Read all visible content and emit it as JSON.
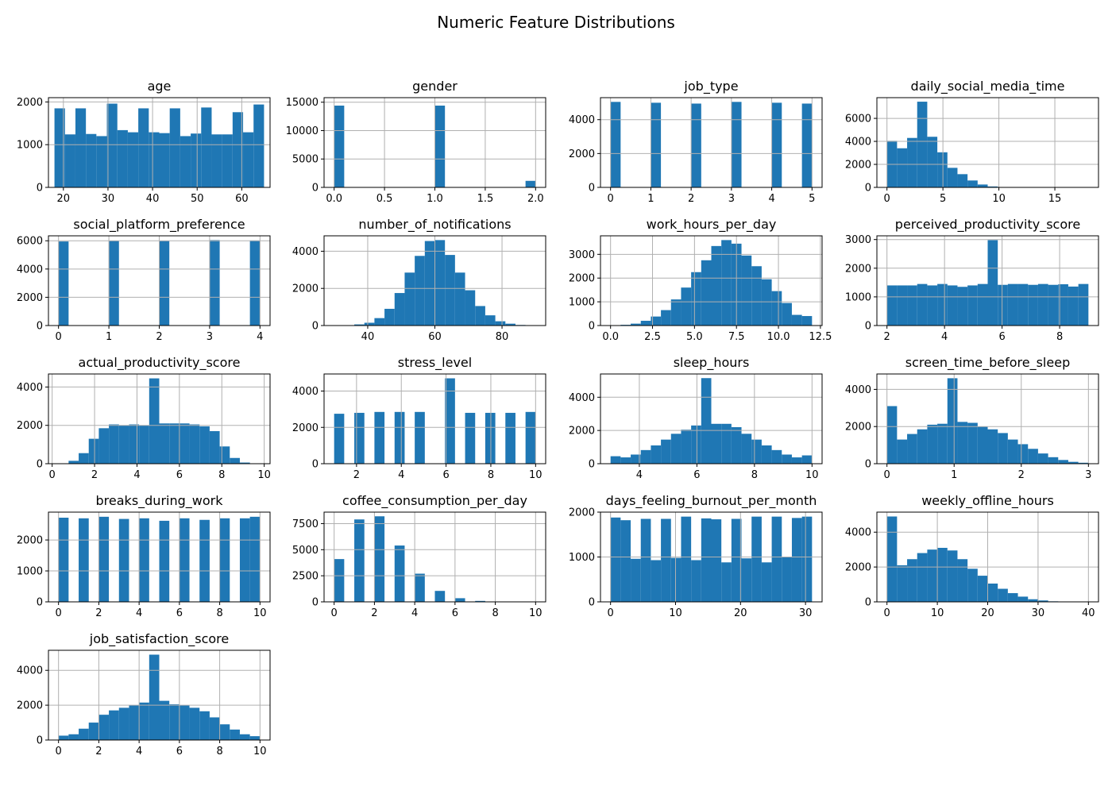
{
  "figure": {
    "title": "Numeric Feature Distributions"
  },
  "chart_data": [
    {
      "type": "bar",
      "title": "age",
      "bin_edges": [
        18,
        20.35,
        22.7,
        25.05,
        27.4,
        29.75,
        32.1,
        34.45,
        36.8,
        39.15,
        41.5,
        43.85,
        46.2,
        48.55,
        50.9,
        53.25,
        55.6,
        57.95,
        60.3,
        62.65,
        65
      ],
      "values": [
        1850,
        1240,
        1850,
        1250,
        1200,
        1960,
        1340,
        1290,
        1850,
        1290,
        1270,
        1850,
        1200,
        1260,
        1870,
        1240,
        1240,
        1760,
        1290,
        1940
      ],
      "xlim": [
        16.65,
        66.35
      ],
      "ylim": [
        0,
        2100
      ],
      "xticks": [
        20,
        30,
        40,
        50,
        60
      ],
      "xtick_labels": [
        "20",
        "30",
        "40",
        "50",
        "60"
      ],
      "yticks": [
        0,
        1000,
        2000
      ],
      "ytick_labels": [
        "0",
        "1000",
        "2000"
      ],
      "grid": true,
      "color": "#1f77b4"
    },
    {
      "type": "bar",
      "title": "gender",
      "bin_edges": [
        0,
        0.1,
        0.2,
        0.3,
        0.4,
        0.5,
        0.6,
        0.7,
        0.8,
        0.9,
        1.0,
        1.1,
        1.2,
        1.3,
        1.4,
        1.5,
        1.6,
        1.7,
        1.8,
        1.9,
        2.0
      ],
      "values": [
        14400,
        0,
        0,
        0,
        0,
        0,
        0,
        0,
        0,
        0,
        14400,
        0,
        0,
        0,
        0,
        0,
        0,
        0,
        0,
        1150
      ],
      "xlim": [
        -0.1,
        2.1
      ],
      "ylim": [
        0,
        15800
      ],
      "xticks": [
        0,
        0.5,
        1,
        1.5,
        2
      ],
      "xtick_labels": [
        "0.0",
        "0.5",
        "1.0",
        "1.5",
        "2.0"
      ],
      "yticks": [
        0,
        5000,
        10000,
        15000
      ],
      "ytick_labels": [
        "0",
        "5000",
        "10000",
        "15000"
      ],
      "grid": true,
      "color": "#1f77b4"
    },
    {
      "type": "bar",
      "title": "job_type",
      "bin_edges": [
        0,
        0.25,
        0.5,
        0.75,
        1.0,
        1.25,
        1.5,
        1.75,
        2.0,
        2.25,
        2.5,
        2.75,
        3.0,
        3.25,
        3.5,
        3.75,
        4.0,
        4.25,
        4.5,
        4.75,
        5.0
      ],
      "values": [
        5050,
        0,
        0,
        0,
        5000,
        0,
        0,
        0,
        4950,
        0,
        0,
        0,
        5050,
        0,
        0,
        0,
        5000,
        0,
        0,
        4950
      ],
      "xlim": [
        -0.25,
        5.25
      ],
      "ylim": [
        0,
        5300
      ],
      "xticks": [
        0,
        1,
        2,
        3,
        4,
        5
      ],
      "xtick_labels": [
        "0",
        "1",
        "2",
        "3",
        "4",
        "5"
      ],
      "yticks": [
        0,
        2000,
        4000
      ],
      "ytick_labels": [
        "0",
        "2000",
        "4000"
      ],
      "grid": true,
      "color": "#1f77b4"
    },
    {
      "type": "bar",
      "title": "daily_social_media_time",
      "bin_edges": [
        0,
        0.9,
        1.8,
        2.7,
        3.6,
        4.5,
        5.4,
        6.3,
        7.2,
        8.1,
        9.0,
        9.9,
        10.8,
        11.7,
        12.6,
        13.5,
        14.4,
        15.3,
        16.2,
        17.1,
        18.0
      ],
      "values": [
        4050,
        3400,
        4300,
        7450,
        4400,
        3050,
        1700,
        1150,
        600,
        250,
        80,
        30,
        10,
        5,
        0,
        0,
        0,
        0,
        0,
        0
      ],
      "xlim": [
        -0.9,
        18.9
      ],
      "ylim": [
        0,
        7800
      ],
      "xticks": [
        0,
        5,
        10,
        15
      ],
      "xtick_labels": [
        "0",
        "5",
        "10",
        "15"
      ],
      "yticks": [
        0,
        2000,
        4000,
        6000
      ],
      "ytick_labels": [
        "0",
        "2000",
        "4000",
        "6000"
      ],
      "grid": true,
      "color": "#1f77b4"
    },
    {
      "type": "bar",
      "title": "social_platform_preference",
      "bin_edges": [
        0,
        0.2,
        0.4,
        0.6,
        0.8,
        1.0,
        1.2,
        1.4,
        1.6,
        1.8,
        2.0,
        2.2,
        2.4,
        2.6,
        2.8,
        3.0,
        3.2,
        3.4,
        3.6,
        3.8,
        4.0
      ],
      "values": [
        5950,
        0,
        0,
        0,
        0,
        6000,
        0,
        0,
        0,
        0,
        5980,
        0,
        0,
        0,
        0,
        6050,
        0,
        0,
        0,
        6020
      ],
      "xlim": [
        -0.2,
        4.2
      ],
      "ylim": [
        0,
        6350
      ],
      "xticks": [
        0,
        1,
        2,
        3,
        4
      ],
      "xtick_labels": [
        "0",
        "1",
        "2",
        "3",
        "4"
      ],
      "yticks": [
        0,
        2000,
        4000,
        6000
      ],
      "ytick_labels": [
        "0",
        "2000",
        "4000",
        "6000"
      ],
      "grid": true,
      "color": "#1f77b4"
    },
    {
      "type": "bar",
      "title": "number_of_notifications",
      "bin_edges": [
        30,
        33,
        36,
        39,
        42,
        45,
        48,
        51,
        54,
        57,
        60,
        63,
        66,
        69,
        72,
        75,
        78,
        81,
        84,
        87,
        90
      ],
      "values": [
        5,
        20,
        60,
        150,
        400,
        900,
        1750,
        2850,
        3750,
        4550,
        4600,
        3800,
        2850,
        1900,
        1050,
        550,
        230,
        100,
        30,
        10
      ],
      "xlim": [
        27,
        93
      ],
      "ylim": [
        0,
        4830
      ],
      "xticks": [
        40,
        60,
        80
      ],
      "xtick_labels": [
        "40",
        "60",
        "80"
      ],
      "yticks": [
        0,
        2000,
        4000
      ],
      "ytick_labels": [
        "0",
        "2000",
        "4000"
      ],
      "grid": true,
      "color": "#1f77b4"
    },
    {
      "type": "bar",
      "title": "work_hours_per_day",
      "bin_edges": [
        0,
        0.6,
        1.2,
        1.8,
        2.4,
        3.0,
        3.6,
        4.2,
        4.8,
        5.4,
        6.0,
        6.6,
        7.2,
        7.8,
        8.4,
        9.0,
        9.6,
        10.2,
        10.8,
        11.4,
        12.0
      ],
      "values": [
        10,
        30,
        80,
        200,
        380,
        650,
        1100,
        1600,
        2250,
        2750,
        3350,
        3600,
        3450,
        2950,
        2500,
        1950,
        1450,
        950,
        450,
        400
      ],
      "xlim": [
        -0.6,
        12.6
      ],
      "ylim": [
        0,
        3780
      ],
      "xticks": [
        0,
        2.5,
        5,
        7.5,
        10,
        12.5
      ],
      "xtick_labels": [
        "0.0",
        "2.5",
        "5.0",
        "7.5",
        "10.0",
        "12.5"
      ],
      "yticks": [
        0,
        1000,
        2000,
        3000
      ],
      "ytick_labels": [
        "0",
        "1000",
        "2000",
        "3000"
      ],
      "grid": true,
      "color": "#1f77b4"
    },
    {
      "type": "bar",
      "title": "perceived_productivity_score",
      "bin_edges": [
        2,
        2.35,
        2.7,
        3.05,
        3.4,
        3.75,
        4.1,
        4.45,
        4.8,
        5.15,
        5.5,
        5.85,
        6.2,
        6.55,
        6.9,
        7.25,
        7.6,
        7.95,
        8.3,
        8.65,
        9.0
      ],
      "values": [
        1400,
        1400,
        1400,
        1450,
        1400,
        1450,
        1400,
        1350,
        1400,
        1450,
        2980,
        1420,
        1450,
        1450,
        1420,
        1450,
        1420,
        1440,
        1360,
        1450
      ],
      "xlim": [
        1.65,
        9.35
      ],
      "ylim": [
        0,
        3130
      ],
      "xticks": [
        2,
        4,
        6,
        8
      ],
      "xtick_labels": [
        "2",
        "4",
        "6",
        "8"
      ],
      "yticks": [
        0,
        1000,
        2000,
        3000
      ],
      "ytick_labels": [
        "0",
        "1000",
        "2000",
        "3000"
      ],
      "grid": true,
      "color": "#1f77b4"
    },
    {
      "type": "bar",
      "title": "actual_productivity_score",
      "bin_edges": [
        0.3,
        0.775,
        1.25,
        1.725,
        2.2,
        2.675,
        3.15,
        3.625,
        4.1,
        4.575,
        5.05,
        5.525,
        6.0,
        6.475,
        6.95,
        7.425,
        7.9,
        8.375,
        8.85,
        9.325,
        9.8
      ],
      "values": [
        10,
        150,
        550,
        1300,
        1850,
        2050,
        2000,
        2050,
        2000,
        4450,
        2100,
        2100,
        2100,
        2050,
        1950,
        1700,
        900,
        300,
        60,
        10
      ],
      "xlim": [
        -0.175,
        10.275
      ],
      "ylim": [
        0,
        4680
      ],
      "xticks": [
        0,
        2,
        4,
        6,
        8,
        10
      ],
      "xtick_labels": [
        "0",
        "2",
        "4",
        "6",
        "8",
        "10"
      ],
      "yticks": [
        0,
        2000,
        4000
      ],
      "ytick_labels": [
        "0",
        "2000",
        "4000"
      ],
      "grid": true,
      "color": "#1f77b4"
    },
    {
      "type": "bar",
      "title": "stress_level",
      "bin_edges": [
        1,
        1.45,
        1.9,
        2.35,
        2.8,
        3.25,
        3.7,
        4.15,
        4.6,
        5.05,
        5.5,
        5.95,
        6.4,
        6.85,
        7.3,
        7.75,
        8.2,
        8.65,
        9.1,
        9.55,
        10.0
      ],
      "values": [
        2750,
        0,
        2800,
        0,
        2850,
        0,
        2850,
        0,
        2850,
        0,
        0,
        4700,
        0,
        2800,
        0,
        2800,
        0,
        2800,
        0,
        2850
      ],
      "xlim": [
        0.55,
        10.45
      ],
      "ylim": [
        0,
        4940
      ],
      "xticks": [
        2,
        4,
        6,
        8,
        10
      ],
      "xtick_labels": [
        "2",
        "4",
        "6",
        "8",
        "10"
      ],
      "yticks": [
        0,
        2000,
        4000
      ],
      "ytick_labels": [
        "0",
        "2000",
        "4000"
      ],
      "grid": true,
      "color": "#1f77b4"
    },
    {
      "type": "bar",
      "title": "sleep_hours",
      "bin_edges": [
        3,
        3.35,
        3.7,
        4.05,
        4.4,
        4.75,
        5.1,
        5.45,
        5.8,
        6.15,
        6.5,
        6.85,
        7.2,
        7.55,
        7.9,
        8.25,
        8.6,
        8.95,
        9.3,
        9.65,
        10.0
      ],
      "values": [
        450,
        380,
        550,
        820,
        1100,
        1450,
        1800,
        2050,
        2300,
        5150,
        2400,
        2400,
        2200,
        1800,
        1450,
        1100,
        820,
        550,
        380,
        500
      ],
      "xlim": [
        2.65,
        10.35
      ],
      "ylim": [
        0,
        5400
      ],
      "xticks": [
        4,
        6,
        8,
        10
      ],
      "xtick_labels": [
        "4",
        "6",
        "8",
        "10"
      ],
      "yticks": [
        0,
        2000,
        4000
      ],
      "ytick_labels": [
        "0",
        "2000",
        "4000"
      ],
      "grid": true,
      "color": "#1f77b4"
    },
    {
      "type": "bar",
      "title": "screen_time_before_sleep",
      "bin_edges": [
        0,
        0.15,
        0.3,
        0.45,
        0.6,
        0.75,
        0.9,
        1.05,
        1.2,
        1.35,
        1.5,
        1.65,
        1.8,
        1.95,
        2.1,
        2.25,
        2.4,
        2.55,
        2.7,
        2.85,
        3.0
      ],
      "values": [
        3100,
        1300,
        1600,
        1850,
        2100,
        2150,
        4600,
        2250,
        2200,
        2000,
        1850,
        1650,
        1300,
        1050,
        800,
        550,
        350,
        200,
        100,
        50
      ],
      "xlim": [
        -0.15,
        3.15
      ],
      "ylim": [
        0,
        4830
      ],
      "xticks": [
        0,
        1,
        2,
        3
      ],
      "xtick_labels": [
        "0",
        "1",
        "2",
        "3"
      ],
      "yticks": [
        0,
        2000,
        4000
      ],
      "ytick_labels": [
        "0",
        "2000",
        "4000"
      ],
      "grid": true,
      "color": "#1f77b4"
    },
    {
      "type": "bar",
      "title": "breaks_during_work",
      "bin_edges": [
        0,
        0.5,
        1.0,
        1.5,
        2.0,
        2.5,
        3.0,
        3.5,
        4.0,
        4.5,
        5.0,
        5.5,
        6.0,
        6.5,
        7.0,
        7.5,
        8.0,
        8.5,
        9.0,
        9.5,
        10.0
      ],
      "values": [
        2720,
        0,
        2700,
        0,
        2750,
        0,
        2680,
        0,
        2700,
        0,
        2620,
        0,
        2700,
        0,
        2650,
        0,
        2700,
        0,
        2700,
        2750
      ],
      "xlim": [
        -0.5,
        10.5
      ],
      "ylim": [
        0,
        2900
      ],
      "xticks": [
        0,
        2,
        4,
        6,
        8,
        10
      ],
      "xtick_labels": [
        "0",
        "2",
        "4",
        "6",
        "8",
        "10"
      ],
      "yticks": [
        0,
        1000,
        2000
      ],
      "ytick_labels": [
        "0",
        "1000",
        "2000"
      ],
      "grid": true,
      "color": "#1f77b4"
    },
    {
      "type": "bar",
      "title": "coffee_consumption_per_day",
      "bin_edges": [
        0,
        0.5,
        1.0,
        1.5,
        2.0,
        2.5,
        3.0,
        3.5,
        4.0,
        4.5,
        5.0,
        5.5,
        6.0,
        6.5,
        7.0,
        7.5,
        8.0,
        8.5,
        9.0,
        9.5,
        10.0
      ],
      "values": [
        4100,
        0,
        7900,
        0,
        8200,
        0,
        5400,
        0,
        2700,
        0,
        1050,
        0,
        350,
        0,
        90,
        0,
        20,
        0,
        5,
        2
      ],
      "xlim": [
        -0.5,
        10.5
      ],
      "ylim": [
        0,
        8600
      ],
      "xticks": [
        0,
        2,
        4,
        6,
        8,
        10
      ],
      "xtick_labels": [
        "0",
        "2",
        "4",
        "6",
        "8",
        "10"
      ],
      "yticks": [
        0,
        2500,
        5000,
        7500
      ],
      "ytick_labels": [
        "0",
        "2500",
        "5000",
        "7500"
      ],
      "grid": true,
      "color": "#1f77b4"
    },
    {
      "type": "bar",
      "title": "days_feeling_burnout_per_month",
      "bin_edges": [
        0,
        1.55,
        3.1,
        4.65,
        6.2,
        7.75,
        9.3,
        10.85,
        12.4,
        13.95,
        15.5,
        17.05,
        18.6,
        20.15,
        21.7,
        23.25,
        24.8,
        26.35,
        27.9,
        29.45,
        31.0
      ],
      "values": [
        1880,
        1820,
        960,
        1850,
        930,
        1850,
        980,
        1900,
        930,
        1860,
        1840,
        880,
        1850,
        970,
        1900,
        880,
        1900,
        1000,
        1870,
        1900
      ],
      "xlim": [
        -1.55,
        32.55
      ],
      "ylim": [
        0,
        2000
      ],
      "xticks": [
        0,
        10,
        20,
        30
      ],
      "xtick_labels": [
        "0",
        "10",
        "20",
        "30"
      ],
      "yticks": [
        0,
        1000,
        2000
      ],
      "ytick_labels": [
        "0",
        "1000",
        "2000"
      ],
      "grid": true,
      "color": "#1f77b4"
    },
    {
      "type": "bar",
      "title": "weekly_offline_hours",
      "bin_edges": [
        0,
        2,
        4,
        6,
        8,
        10,
        12,
        14,
        16,
        18,
        20,
        22,
        24,
        26,
        28,
        30,
        32,
        34,
        36,
        38,
        40
      ],
      "values": [
        4900,
        2100,
        2450,
        2800,
        3000,
        3100,
        2950,
        2450,
        1900,
        1500,
        1050,
        750,
        500,
        300,
        150,
        80,
        30,
        10,
        5,
        2
      ],
      "xlim": [
        -2,
        42
      ],
      "ylim": [
        0,
        5150
      ],
      "xticks": [
        0,
        10,
        20,
        30,
        40
      ],
      "xtick_labels": [
        "0",
        "10",
        "20",
        "30",
        "40"
      ],
      "yticks": [
        0,
        2000,
        4000
      ],
      "ytick_labels": [
        "0",
        "2000",
        "4000"
      ],
      "grid": true,
      "color": "#1f77b4"
    },
    {
      "type": "bar",
      "title": "job_satisfaction_score",
      "bin_edges": [
        0,
        0.5,
        1.0,
        1.5,
        2.0,
        2.5,
        3.0,
        3.5,
        4.0,
        4.5,
        5.0,
        5.5,
        6.0,
        6.5,
        7.0,
        7.5,
        8.0,
        8.5,
        9.0,
        9.5,
        10.0
      ],
      "values": [
        250,
        330,
        650,
        1000,
        1450,
        1700,
        1850,
        2000,
        2150,
        4900,
        2250,
        2050,
        2000,
        1850,
        1650,
        1300,
        900,
        600,
        330,
        220
      ],
      "xlim": [
        -0.5,
        10.5
      ],
      "ylim": [
        0,
        5150
      ],
      "xticks": [
        0,
        2,
        4,
        6,
        8,
        10
      ],
      "xtick_labels": [
        "0",
        "2",
        "4",
        "6",
        "8",
        "10"
      ],
      "yticks": [
        0,
        2000,
        4000
      ],
      "ytick_labels": [
        "0",
        "2000",
        "4000"
      ],
      "grid": true,
      "color": "#1f77b4"
    }
  ]
}
